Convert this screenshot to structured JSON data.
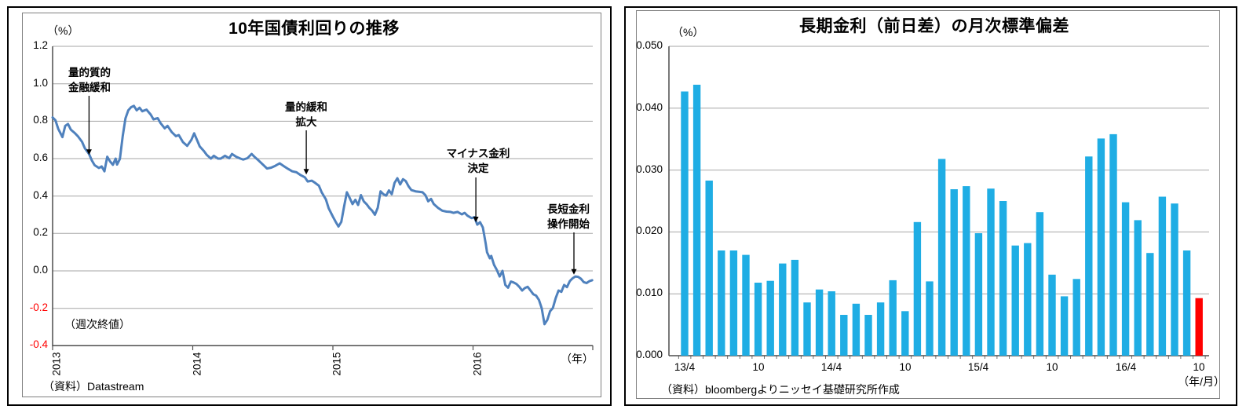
{
  "left_chart": {
    "title": "10年国債利回りの推移",
    "unit_label": "（%）",
    "freq_note": "（週次終値）",
    "x_axis_unit": "（年）",
    "source": "（資料）Datastream",
    "y_ticks": [
      "1.2",
      "1.0",
      "0.8",
      "0.6",
      "0.4",
      "0.2",
      "0.0",
      "-0.2",
      "-0.4"
    ],
    "x_ticks": [
      "2013",
      "2014",
      "2015",
      "2016"
    ],
    "negative_tick_color": "#ff0000"
  },
  "right_chart": {
    "title": "長期金利（前日差）の月次標準偏差",
    "unit_label": "（%）",
    "x_axis_unit": "（年/月）",
    "source": "（資料）bloombergよりニッセイ基礎研究所作成",
    "y_ticks": [
      "0.050",
      "0.040",
      "0.030",
      "0.020",
      "0.010",
      "0.000"
    ],
    "x_labels": [
      "13/4",
      "10",
      "14/4",
      "10",
      "15/4",
      "10",
      "16/4",
      "10"
    ]
  },
  "chart_data": [
    {
      "type": "line",
      "title": "10年国債利回りの推移",
      "ylabel": "（%）",
      "xlabel": "（年）",
      "ylim": [
        -0.4,
        1.2
      ],
      "ytick_step": 0.2,
      "x_ticks": [
        2013,
        2014,
        2015,
        2016
      ],
      "series_name": "10年国債利回り（週次終値）",
      "line_color": "#4f81bd",
      "annotations": [
        {
          "lines": [
            "量的質的",
            "金融緩和"
          ],
          "x": 2013.26,
          "y_tip": 0.62
        },
        {
          "lines": [
            "量的緩和",
            "拡大"
          ],
          "x": 2014.81,
          "y_tip": 0.515
        },
        {
          "lines": [
            "マイナス金利",
            "決定"
          ],
          "x": 2016.02,
          "y_tip": 0.26
        },
        {
          "lines": [
            "長短金利",
            "操作開始"
          ],
          "x": 2016.72,
          "y_tip": -0.02
        }
      ],
      "points": [
        [
          2013.0,
          0.82
        ],
        [
          2013.02,
          0.805
        ],
        [
          2013.04,
          0.76
        ],
        [
          2013.07,
          0.715
        ],
        [
          2013.09,
          0.775
        ],
        [
          2013.11,
          0.785
        ],
        [
          2013.13,
          0.755
        ],
        [
          2013.16,
          0.735
        ],
        [
          2013.18,
          0.72
        ],
        [
          2013.21,
          0.69
        ],
        [
          2013.23,
          0.655
        ],
        [
          2013.26,
          0.625
        ],
        [
          2013.28,
          0.59
        ],
        [
          2013.3,
          0.565
        ],
        [
          2013.33,
          0.55
        ],
        [
          2013.35,
          0.558
        ],
        [
          2013.37,
          0.532
        ],
        [
          2013.39,
          0.61
        ],
        [
          2013.41,
          0.585
        ],
        [
          2013.43,
          0.567
        ],
        [
          2013.45,
          0.6
        ],
        [
          2013.46,
          0.568
        ],
        [
          2013.48,
          0.598
        ],
        [
          2013.5,
          0.72
        ],
        [
          2013.52,
          0.815
        ],
        [
          2013.54,
          0.858
        ],
        [
          2013.56,
          0.875
        ],
        [
          2013.58,
          0.882
        ],
        [
          2013.6,
          0.858
        ],
        [
          2013.62,
          0.872
        ],
        [
          2013.64,
          0.853
        ],
        [
          2013.67,
          0.862
        ],
        [
          2013.7,
          0.835
        ],
        [
          2013.72,
          0.81
        ],
        [
          2013.75,
          0.816
        ],
        [
          2013.77,
          0.79
        ],
        [
          2013.8,
          0.762
        ],
        [
          2013.82,
          0.775
        ],
        [
          2013.85,
          0.742
        ],
        [
          2013.88,
          0.72
        ],
        [
          2013.9,
          0.726
        ],
        [
          2013.93,
          0.688
        ],
        [
          2013.96,
          0.668
        ],
        [
          2013.99,
          0.7
        ],
        [
          2014.01,
          0.735
        ],
        [
          2014.03,
          0.7
        ],
        [
          2014.05,
          0.665
        ],
        [
          2014.08,
          0.64
        ],
        [
          2014.1,
          0.62
        ],
        [
          2014.13,
          0.6
        ],
        [
          2014.15,
          0.615
        ],
        [
          2014.18,
          0.6
        ],
        [
          2014.2,
          0.6
        ],
        [
          2014.23,
          0.615
        ],
        [
          2014.26,
          0.602
        ],
        [
          2014.28,
          0.625
        ],
        [
          2014.31,
          0.61
        ],
        [
          2014.34,
          0.6
        ],
        [
          2014.36,
          0.595
        ],
        [
          2014.39,
          0.602
        ],
        [
          2014.42,
          0.625
        ],
        [
          2014.44,
          0.61
        ],
        [
          2014.47,
          0.59
        ],
        [
          2014.5,
          0.568
        ],
        [
          2014.53,
          0.547
        ],
        [
          2014.56,
          0.552
        ],
        [
          2014.59,
          0.562
        ],
        [
          2014.62,
          0.575
        ],
        [
          2014.65,
          0.56
        ],
        [
          2014.68,
          0.545
        ],
        [
          2014.71,
          0.532
        ],
        [
          2014.74,
          0.527
        ],
        [
          2014.77,
          0.512
        ],
        [
          2014.8,
          0.5
        ],
        [
          2014.82,
          0.478
        ],
        [
          2014.85,
          0.482
        ],
        [
          2014.87,
          0.472
        ],
        [
          2014.9,
          0.455
        ],
        [
          2014.92,
          0.42
        ],
        [
          2014.95,
          0.382
        ],
        [
          2014.97,
          0.335
        ],
        [
          2015.0,
          0.29
        ],
        [
          2015.02,
          0.262
        ],
        [
          2015.04,
          0.237
        ],
        [
          2015.06,
          0.262
        ],
        [
          2015.08,
          0.345
        ],
        [
          2015.1,
          0.42
        ],
        [
          2015.12,
          0.39
        ],
        [
          2015.14,
          0.357
        ],
        [
          2015.16,
          0.38
        ],
        [
          2015.18,
          0.352
        ],
        [
          2015.2,
          0.405
        ],
        [
          2015.22,
          0.372
        ],
        [
          2015.24,
          0.357
        ],
        [
          2015.26,
          0.337
        ],
        [
          2015.28,
          0.322
        ],
        [
          2015.3,
          0.3
        ],
        [
          2015.32,
          0.337
        ],
        [
          2015.34,
          0.425
        ],
        [
          2015.36,
          0.41
        ],
        [
          2015.38,
          0.402
        ],
        [
          2015.4,
          0.43
        ],
        [
          2015.42,
          0.41
        ],
        [
          2015.44,
          0.47
        ],
        [
          2015.46,
          0.495
        ],
        [
          2015.48,
          0.462
        ],
        [
          2015.5,
          0.49
        ],
        [
          2015.52,
          0.48
        ],
        [
          2015.54,
          0.452
        ],
        [
          2015.56,
          0.432
        ],
        [
          2015.59,
          0.425
        ],
        [
          2015.62,
          0.422
        ],
        [
          2015.64,
          0.42
        ],
        [
          2015.66,
          0.405
        ],
        [
          2015.68,
          0.372
        ],
        [
          2015.7,
          0.385
        ],
        [
          2015.72,
          0.357
        ],
        [
          2015.75,
          0.337
        ],
        [
          2015.78,
          0.322
        ],
        [
          2015.81,
          0.317
        ],
        [
          2015.84,
          0.315
        ],
        [
          2015.86,
          0.31
        ],
        [
          2015.89,
          0.315
        ],
        [
          2015.92,
          0.302
        ],
        [
          2015.94,
          0.31
        ],
        [
          2015.96,
          0.295
        ],
        [
          2015.99,
          0.282
        ],
        [
          2016.01,
          0.287
        ],
        [
          2016.03,
          0.247
        ],
        [
          2016.05,
          0.26
        ],
        [
          2016.07,
          0.232
        ],
        [
          2016.09,
          0.147
        ],
        [
          2016.1,
          0.1
        ],
        [
          2016.12,
          0.067
        ],
        [
          2016.13,
          0.08
        ],
        [
          2016.15,
          0.032
        ],
        [
          2016.17,
          0.005
        ],
        [
          2016.19,
          -0.03
        ],
        [
          2016.21,
          0.0
        ],
        [
          2016.23,
          -0.075
        ],
        [
          2016.25,
          -0.09
        ],
        [
          2016.27,
          -0.057
        ],
        [
          2016.29,
          -0.062
        ],
        [
          2016.31,
          -0.07
        ],
        [
          2016.33,
          -0.085
        ],
        [
          2016.35,
          -0.105
        ],
        [
          2016.37,
          -0.092
        ],
        [
          2016.39,
          -0.085
        ],
        [
          2016.41,
          -0.105
        ],
        [
          2016.43,
          -0.125
        ],
        [
          2016.45,
          -0.132
        ],
        [
          2016.47,
          -0.155
        ],
        [
          2016.49,
          -0.2
        ],
        [
          2016.51,
          -0.285
        ],
        [
          2016.53,
          -0.262
        ],
        [
          2016.55,
          -0.215
        ],
        [
          2016.57,
          -0.198
        ],
        [
          2016.59,
          -0.145
        ],
        [
          2016.61,
          -0.105
        ],
        [
          2016.63,
          -0.112
        ],
        [
          2016.65,
          -0.075
        ],
        [
          2016.67,
          -0.087
        ],
        [
          2016.69,
          -0.055
        ],
        [
          2016.71,
          -0.04
        ],
        [
          2016.73,
          -0.03
        ],
        [
          2016.75,
          -0.032
        ],
        [
          2016.77,
          -0.042
        ],
        [
          2016.79,
          -0.06
        ],
        [
          2016.81,
          -0.065
        ],
        [
          2016.83,
          -0.055
        ],
        [
          2016.85,
          -0.05
        ]
      ]
    },
    {
      "type": "bar",
      "title": "長期金利（前日差）の月次標準偏差",
      "ylabel": "（%）",
      "xlabel": "（年/月）",
      "ylim": [
        0,
        0.05
      ],
      "ytick_step": 0.01,
      "bar_color": "#1fadе4",
      "bar_color_fixed": "#1fade4",
      "highlight_color": "#ff0000",
      "highlight_index": 42,
      "categories": [
        "13/4",
        "13/5",
        "13/6",
        "13/7",
        "13/8",
        "13/9",
        "13/10",
        "13/11",
        "13/12",
        "14/1",
        "14/2",
        "14/3",
        "14/4",
        "14/5",
        "14/6",
        "14/7",
        "14/8",
        "14/9",
        "14/10",
        "14/11",
        "14/12",
        "15/1",
        "15/2",
        "15/3",
        "15/4",
        "15/5",
        "15/6",
        "15/7",
        "15/8",
        "15/9",
        "15/10",
        "15/11",
        "15/12",
        "16/1",
        "16/2",
        "16/3",
        "16/4",
        "16/5",
        "16/6",
        "16/7",
        "16/8",
        "16/9",
        "16/10"
      ],
      "values": [
        0.0427,
        0.0438,
        0.0283,
        0.017,
        0.017,
        0.0163,
        0.0118,
        0.0121,
        0.0149,
        0.0155,
        0.0086,
        0.0107,
        0.0104,
        0.0066,
        0.0084,
        0.0066,
        0.0086,
        0.0122,
        0.0072,
        0.0216,
        0.012,
        0.0318,
        0.0269,
        0.0274,
        0.0198,
        0.027,
        0.025,
        0.0178,
        0.0182,
        0.0232,
        0.0131,
        0.0096,
        0.0124,
        0.0322,
        0.0351,
        0.0358,
        0.0248,
        0.0219,
        0.0166,
        0.0257,
        0.0246,
        0.017,
        0.0093
      ]
    }
  ]
}
